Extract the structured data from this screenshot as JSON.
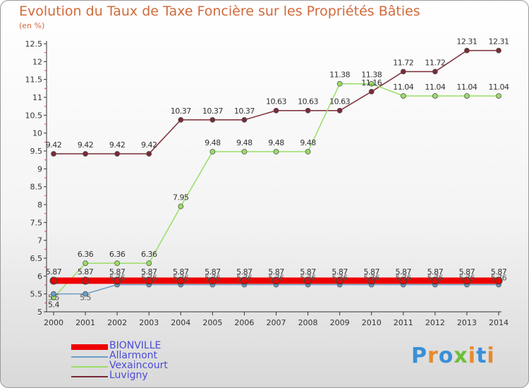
{
  "title": "Evolution du Taux de Taxe Foncière sur les Propriétés Bâties",
  "unit": "(en %)",
  "logo": {
    "text": "Proxiti",
    "letters": [
      {
        "ch": "P",
        "color": "#3a8fd6"
      },
      {
        "ch": "r",
        "color": "#e78a2c"
      },
      {
        "ch": "o",
        "color": "#3a8fd6"
      },
      {
        "ch": "x",
        "color": "#6cbf3a"
      },
      {
        "ch": "i",
        "color": "#e78a2c"
      },
      {
        "ch": "t",
        "color": "#3a8fd6"
      },
      {
        "ch": "i",
        "color": "#e78a2c"
      }
    ]
  },
  "chart_data": {
    "type": "line",
    "title": "Evolution du Taux de Taxe Foncière sur les Propriétés Bâties",
    "ylabel": "(en %)",
    "xlabel": "",
    "x": [
      "2000",
      "2001",
      "2002",
      "2003",
      "2004",
      "2005",
      "2006",
      "2007",
      "2008",
      "2009",
      "2010",
      "2011",
      "2012",
      "2013",
      "2014"
    ],
    "ylim": [
      5,
      12.5
    ],
    "yticks": [
      "5",
      "5.5",
      "6",
      "6.5",
      "7",
      "7.5",
      "8",
      "8.5",
      "9",
      "9.5",
      "10",
      "10.5",
      "11",
      "11.5",
      "12",
      "12.5"
    ],
    "grid": false,
    "legend_position": "bottom-left",
    "series": [
      {
        "name": "BIONVILLE",
        "color": "#ee0000",
        "values": [
          5.87,
          5.87,
          5.87,
          5.87,
          5.87,
          5.87,
          5.87,
          5.87,
          5.87,
          5.87,
          5.87,
          5.87,
          5.87,
          5.87,
          5.87
        ],
        "labels": [
          "5.87",
          "5.87",
          "5.87",
          "5.87",
          "5.87",
          "5.87",
          "5.87",
          "5.87",
          "5.87",
          "5.87",
          "5.87",
          "5.87",
          "5.87",
          "5.87",
          "5.87"
        ]
      },
      {
        "name": "Allarmont",
        "color": "#6a9ec6",
        "values": [
          5.5,
          5.5,
          5.76,
          5.76,
          5.76,
          5.76,
          5.76,
          5.76,
          5.76,
          5.76,
          5.76,
          5.76,
          5.76,
          5.76,
          5.76
        ],
        "labels": [
          "5.5",
          "5.5",
          "5.76",
          "5.76",
          "5.76",
          "5.76",
          "5.76",
          "5.76",
          "5.76",
          "5.76",
          "5.76",
          "5.76",
          "5.76",
          "5.76",
          "5.76"
        ]
      },
      {
        "name": "Vexaincourt",
        "color": "#99dd66",
        "values": [
          5.4,
          6.36,
          6.36,
          6.36,
          7.95,
          9.48,
          9.48,
          9.48,
          9.48,
          11.38,
          11.38,
          11.04,
          11.04,
          11.04,
          11.04
        ],
        "labels": [
          "5.4",
          "6.36",
          "6.36",
          "6.36",
          "7.95",
          "9.48",
          "9.48",
          "9.48",
          "9.48",
          "11.38",
          "11.38",
          "11.04",
          "11.04",
          "11.04",
          "11.04"
        ]
      },
      {
        "name": "Luvigny",
        "color": "#7a2a35",
        "values": [
          9.42,
          9.42,
          9.42,
          9.42,
          10.37,
          10.37,
          10.37,
          10.63,
          10.63,
          10.63,
          11.16,
          11.72,
          11.72,
          12.31,
          12.31
        ],
        "labels": [
          "9.42",
          "9.42",
          "9.42",
          "9.42",
          "10.37",
          "10.37",
          "10.37",
          "10.63",
          "10.63",
          "10.63",
          "11.16",
          "11.72",
          "11.72",
          "12.31",
          "12.31"
        ]
      }
    ]
  }
}
